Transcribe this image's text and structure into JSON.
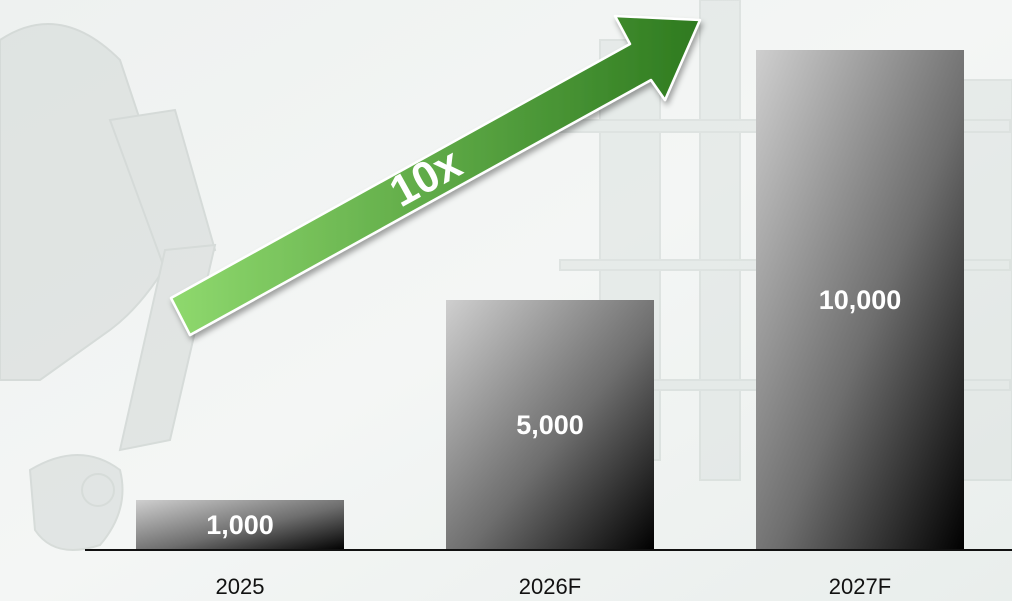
{
  "chart_data": {
    "type": "bar",
    "categories": [
      "2025",
      "2026F",
      "2027F"
    ],
    "values": [
      1000,
      5000,
      10000
    ],
    "value_labels": [
      "1,000",
      "5,000",
      "10,000"
    ],
    "ylim": [
      0,
      10500
    ],
    "grid": false,
    "annotation": "10x"
  },
  "colors": {
    "bar_gradient_light": "#cfcfcf",
    "bar_gradient_dark": "#000000",
    "arrow_light": "#8fd96e",
    "arrow_dark": "#2e7a1f",
    "baseline": "#111111"
  }
}
